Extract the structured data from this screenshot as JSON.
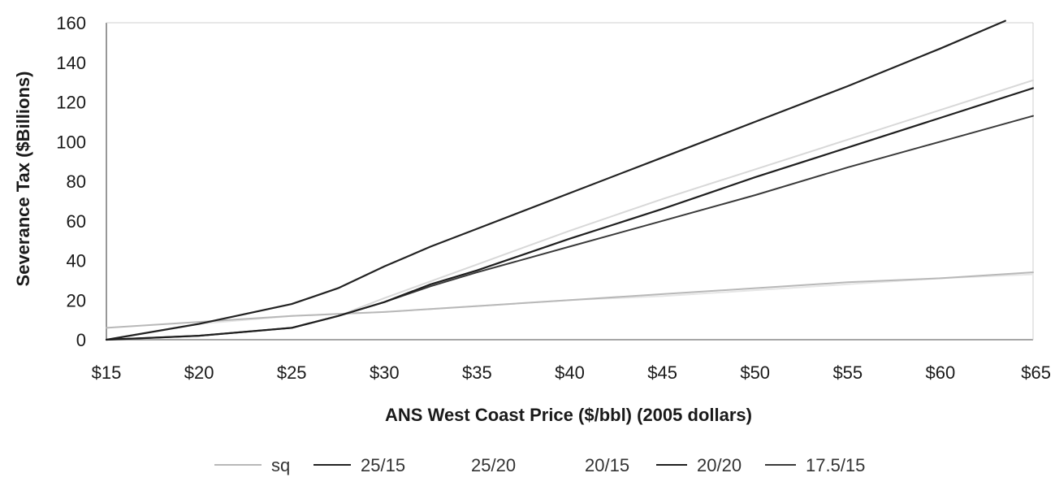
{
  "chart_data": {
    "type": "line",
    "title": "",
    "xlabel": "ANS West Coast Price ($/bbl) (2005 dollars)",
    "ylabel": "Severance Tax ($Billions)",
    "x_ticks": [
      "$15",
      "$20",
      "$25",
      "$30",
      "$35",
      "$40",
      "$45",
      "$50",
      "$55",
      "$60",
      "$65"
    ],
    "y_ticks": [
      "0",
      "20",
      "40",
      "60",
      "80",
      "100",
      "120",
      "140",
      "160"
    ],
    "xlim": [
      15,
      65
    ],
    "ylim": [
      0,
      160
    ],
    "grid": false,
    "legend_position": "bottom",
    "series": [
      {
        "name": "sq",
        "color": "#b8b8b8",
        "width": 2,
        "x": [
          15,
          20,
          25,
          27.5,
          30,
          35,
          40,
          45,
          50,
          55,
          60,
          65
        ],
        "y": [
          6,
          9,
          12,
          13,
          14,
          17,
          20,
          23,
          26,
          29,
          31,
          34
        ]
      },
      {
        "name": "25/15",
        "color": "#222222",
        "width": 2.2,
        "x": [
          15,
          20,
          25,
          27.5,
          30,
          32.5,
          35,
          40,
          45,
          50,
          55,
          60,
          63.5
        ],
        "y": [
          0,
          8,
          18,
          26,
          37,
          47,
          56,
          74,
          92,
          110,
          128,
          147,
          161
        ]
      },
      {
        "name": "25/20",
        "color": "#d8d8d8",
        "width": 2,
        "x": [
          15,
          20,
          25,
          27.5,
          30,
          35,
          40,
          45,
          50,
          55,
          60,
          65
        ],
        "y": [
          0,
          2,
          6,
          12,
          21,
          38,
          55,
          71,
          86,
          101,
          116,
          131
        ]
      },
      {
        "name": "20/15",
        "color": "#e6e6e6",
        "width": 2,
        "x": [
          15,
          20,
          25,
          27.5,
          30,
          35,
          40,
          45,
          50,
          55,
          60,
          65
        ],
        "y": [
          0,
          8,
          12,
          13,
          14,
          17,
          20,
          22,
          25,
          28,
          31,
          33
        ]
      },
      {
        "name": "20/20",
        "color": "#1f1f1f",
        "width": 2.2,
        "x": [
          15,
          20,
          25,
          27.5,
          30,
          32.5,
          35,
          40,
          45,
          50,
          55,
          60,
          65
        ],
        "y": [
          0,
          2,
          6,
          12,
          19,
          28,
          35,
          51,
          66,
          82,
          97,
          112,
          127
        ]
      },
      {
        "name": "17.5/15",
        "color": "#3a3a3a",
        "width": 2,
        "x": [
          15,
          20,
          25,
          27.5,
          30,
          32.5,
          35,
          40,
          45,
          50,
          55,
          60,
          65
        ],
        "y": [
          0,
          2,
          6,
          12,
          19,
          27,
          34,
          47,
          60,
          73,
          87,
          100,
          113
        ]
      }
    ]
  }
}
